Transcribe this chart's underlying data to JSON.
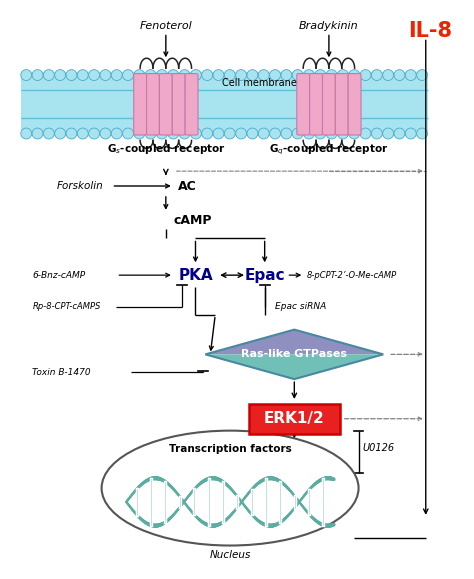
{
  "title": "IL-8",
  "title_color": "#EE2200",
  "bg_color": "#FFFFFF",
  "membrane_cyan": "#A8E4F0",
  "membrane_blue_line": "#6ECAE0",
  "receptor_pink": "#F0A8C8",
  "receptor_edge": "#C878A8",
  "fenoterol_label": "Fenoterol",
  "bradykinin_label": "Bradykinin",
  "gs_label": "G$_s$-coupled receptor",
  "gq_label": "G$_q$-coupled receptor",
  "cell_membrane_label": "Cell membrane",
  "ac_label": "AC",
  "forskolin_label": "Forskolin",
  "camp_label": "cAMP",
  "pka_label": "PKA",
  "epac_label": "Epac",
  "bnz_camp_label": "6-Bnz-cAMP",
  "rp_label": "Rp-8-CPT-cAMPS",
  "pcpt_label": "8-pCPT-2’-O-Me-cAMP",
  "epac_sirna_label": "Epac siRNA",
  "ras_label": "Ras-like GTPases",
  "toxin_label": "Toxin B-1470",
  "erk_label": "ERK1/2",
  "u0126_label": "U0126",
  "tf_label": "Transcription factors",
  "nucleus_label": "Nucleus",
  "ras_color1": "#8B9DC8",
  "ras_color2": "#6ABCB8",
  "dna_color": "#5AADA0"
}
